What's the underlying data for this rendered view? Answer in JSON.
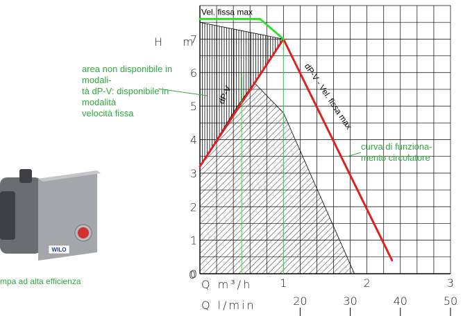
{
  "chart_data": {
    "type": "line",
    "title": "",
    "ylabel": "H m",
    "xlabel": "Q m³/h",
    "secondary_xlabel": "Q l/min",
    "xlim": [
      0,
      3
    ],
    "ylim": [
      0,
      8
    ],
    "x_ticks": [
      "0",
      "1",
      "2",
      "3"
    ],
    "y_ticks": [
      "0",
      "1",
      "2",
      "3",
      "4",
      "5",
      "6",
      "7"
    ],
    "secondary_x_ticks": [
      "20",
      "30",
      "40",
      "50"
    ],
    "secondary_x_values": [
      20,
      30,
      40,
      50
    ],
    "grid": true,
    "series": [
      {
        "name": "dP-V",
        "color": "#e02020",
        "x": [
          0,
          1,
          2.3
        ],
        "y": [
          3.2,
          7,
          0.4
        ]
      },
      {
        "name": "Vel. fissa max",
        "color": "#2ee02e",
        "x": [
          0,
          0.72,
          1
        ],
        "y": [
          7.6,
          7.6,
          7
        ]
      }
    ],
    "curve_labels": {
      "dpv_left": "dP-V",
      "dpv_right": "dP-V - Vel. fissa max",
      "vel_fissa": "Vel. fissa max"
    },
    "region_fixed_only": [
      [
        0,
        7.5
      ],
      [
        0,
        3.2
      ],
      [
        1,
        7
      ]
    ],
    "region_available": [
      [
        0,
        0
      ],
      [
        0,
        3.2
      ],
      [
        0.45,
        5
      ],
      [
        0.65,
        5.7
      ],
      [
        1,
        4.8
      ],
      [
        1.85,
        0
      ]
    ]
  },
  "annotations": {
    "area_note": [
      "area non disponibile in modali-",
      "tà dP-V: disponibile in modalità",
      "velocità fissa"
    ],
    "curve_note": [
      "curva di funziona-",
      "mento circolatore"
    ],
    "pump_note": "mpa ad alta efficienza"
  },
  "pump": {
    "brand": "WILO",
    "body_color": "#9ea1a6",
    "knob_color": "#d0302f"
  },
  "colors": {
    "annotation": "#2eaa3c",
    "grid": "#000000"
  }
}
